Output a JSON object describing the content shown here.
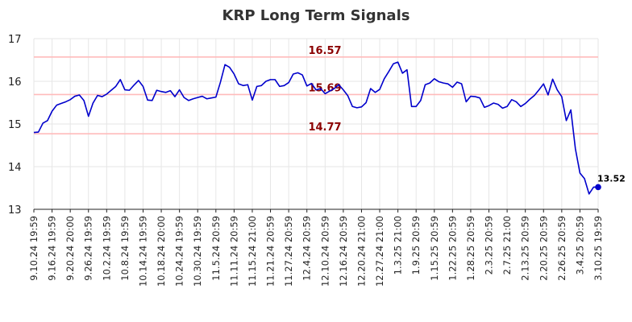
{
  "chart_data": {
    "type": "line",
    "title": "KRP Long Term Signals",
    "xlabel": "",
    "ylabel": "",
    "ylim": [
      13,
      17
    ],
    "yticks": [
      "13",
      "14",
      "15",
      "16",
      "17"
    ],
    "grid": true,
    "x_tick_labels": [
      "9.10.24 19:59",
      "9.16.24 19:59",
      "9.20.24 20:00",
      "9.26.24 19:59",
      "10.2.24 19:59",
      "10.8.24 19:59",
      "10.14.24 19:59",
      "10.18.24 20:00",
      "10.24.24 19:59",
      "10.30.24 19:59",
      "11.5.24 20:59",
      "11.11.24 20:59",
      "11.15.24 21:00",
      "11.21.24 20:59",
      "11.27.24 20:59",
      "12.4.24 20:59",
      "12.10.24 20:59",
      "12.16.24 20:59",
      "12.20.24 21:00",
      "12.27.24 21:00",
      "1.3.25 21:00",
      "1.9.25 20:59",
      "1.15.25 20:59",
      "1.22.25 20:59",
      "1.28.25 20:59",
      "2.3.25 20:59",
      "2.7.25 21:00",
      "2.13.25 20:59",
      "2.20.25 20:59",
      "2.26.25 20:59",
      "3.4.25 20:59",
      "3.10.25 19:59"
    ],
    "levels": [
      {
        "value": 16.57,
        "label": "16.57",
        "line_color": "#ffbbbb",
        "label_color": "#8b0000"
      },
      {
        "value": 15.69,
        "label": "15.69",
        "line_color": "#ffbbbb",
        "label_color": "#8b0000"
      },
      {
        "value": 14.77,
        "label": "14.77",
        "line_color": "#ffbbbb",
        "label_color": "#8b0000"
      }
    ],
    "series": [
      {
        "color": "#0000cc",
        "values": [
          14.8,
          14.81,
          15.02,
          15.08,
          15.3,
          15.44,
          15.48,
          15.52,
          15.57,
          15.65,
          15.68,
          15.55,
          15.18,
          15.49,
          15.67,
          15.64,
          15.7,
          15.79,
          15.88,
          16.04,
          15.8,
          15.79,
          15.91,
          16.02,
          15.88,
          15.56,
          15.55,
          15.79,
          15.76,
          15.74,
          15.78,
          15.64,
          15.8,
          15.62,
          15.55,
          15.59,
          15.62,
          15.65,
          15.59,
          15.61,
          15.63,
          15.98,
          16.39,
          16.33,
          16.17,
          15.94,
          15.9,
          15.92,
          15.56,
          15.88,
          15.9,
          16.0,
          16.04,
          16.04,
          15.88,
          15.9,
          15.97,
          16.17,
          16.2,
          16.15,
          15.89,
          15.95,
          15.8,
          15.83,
          15.71,
          15.77,
          15.83,
          15.92,
          15.8,
          15.66,
          15.41,
          15.38,
          15.4,
          15.5,
          15.83,
          15.74,
          15.81,
          16.06,
          16.23,
          16.41,
          16.45,
          16.19,
          16.27,
          15.41,
          15.41,
          15.55,
          15.92,
          15.96,
          16.06,
          15.99,
          15.96,
          15.94,
          15.86,
          15.98,
          15.94,
          15.52,
          15.65,
          15.64,
          15.61,
          15.39,
          15.43,
          15.49,
          15.46,
          15.37,
          15.41,
          15.57,
          15.52,
          15.41,
          15.48,
          15.58,
          15.67,
          15.8,
          15.94,
          15.68,
          16.05,
          15.8,
          15.64,
          15.08,
          15.33,
          14.42,
          13.85,
          13.72,
          13.36,
          13.52,
          13.52
        ]
      }
    ],
    "last_value_label": "13.52",
    "last_point_color": "#0000cc"
  }
}
